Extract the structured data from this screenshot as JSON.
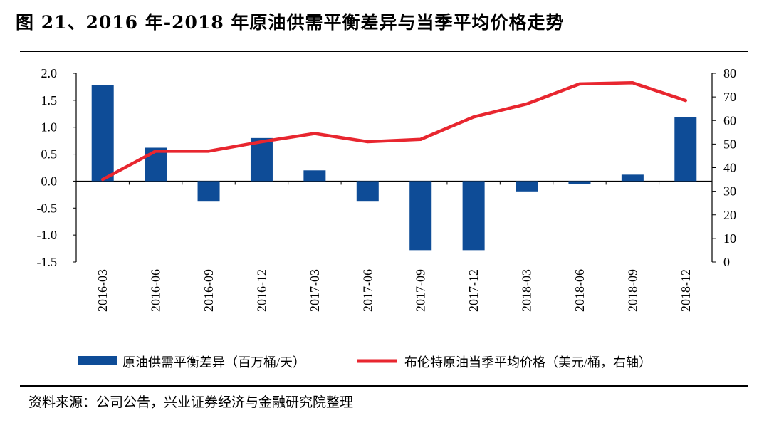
{
  "title": "图 21、2016 年-2018 年原油供需平衡差异与当季平均价格走势",
  "source": "资料来源：公司公告，兴业证券经济与金融研究院整理",
  "colors": {
    "bar": "#0E4C97",
    "line": "#E8262F",
    "axis": "#000000"
  },
  "chart_data": {
    "type": "bar+line",
    "categories": [
      "2016-03",
      "2016-06",
      "2016-09",
      "2016-12",
      "2017-03",
      "2017-06",
      "2017-09",
      "2017-12",
      "2018-03",
      "2018-06",
      "2018-09",
      "2018-12"
    ],
    "series": [
      {
        "name": "原油供需平衡差异（百万桶/天）",
        "type": "bar",
        "axis": "left",
        "values": [
          1.78,
          0.62,
          -0.38,
          0.8,
          0.2,
          -0.38,
          -1.28,
          -1.28,
          -0.19,
          -0.05,
          0.12,
          1.19
        ]
      },
      {
        "name": "布伦特原油当季平均价格（美元/桶，右轴）",
        "type": "line",
        "axis": "right",
        "values": [
          35,
          47,
          47,
          51,
          54.5,
          51,
          52,
          61.5,
          67,
          75.5,
          76,
          68.5
        ]
      }
    ],
    "y_left": {
      "min": -1.5,
      "max": 2.0,
      "ticks": [
        "2.0",
        "1.5",
        "1.0",
        "0.5",
        "0.0",
        "-0.5",
        "-1.0",
        "-1.5"
      ]
    },
    "y_right": {
      "min": 0,
      "max": 80,
      "ticks": [
        "80",
        "70",
        "60",
        "50",
        "40",
        "30",
        "20",
        "10",
        "0"
      ]
    },
    "legend_position": "bottom"
  }
}
